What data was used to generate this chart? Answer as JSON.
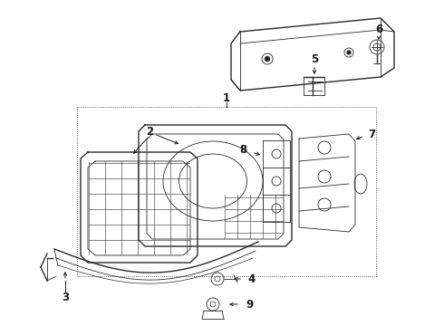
{
  "bg_color": "#ffffff",
  "line_color": "#2a2a2a",
  "label_color": "#1a1a1a",
  "figure_size": [
    4.9,
    3.6
  ],
  "dpi": 100
}
